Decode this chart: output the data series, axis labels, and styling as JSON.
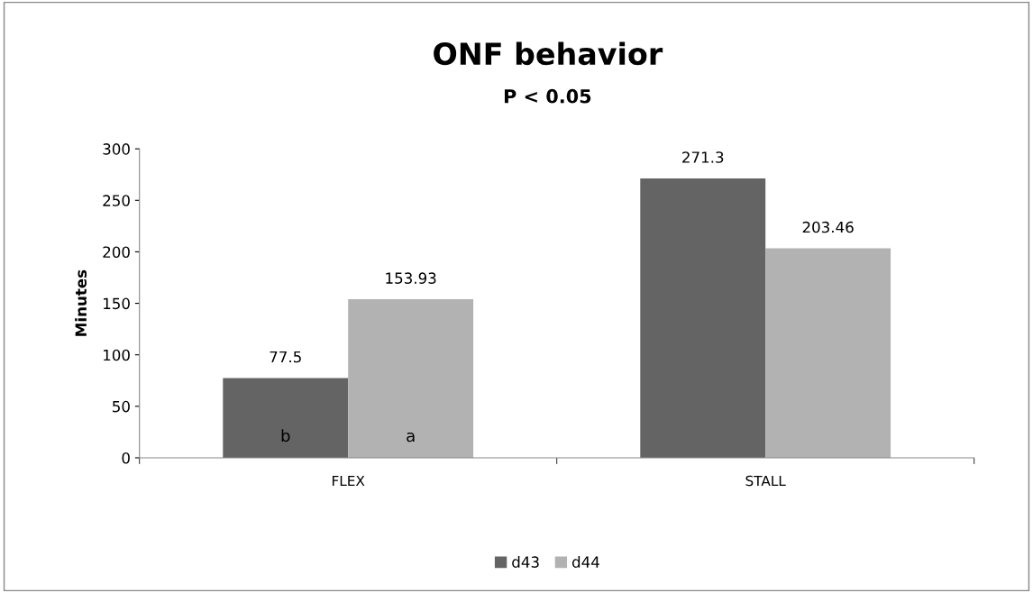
{
  "chart_data": {
    "type": "bar",
    "title": "ONF behavior",
    "subtitle": "P < 0.05",
    "ylabel": "Minutes",
    "categories": [
      "FLEX",
      "STALL"
    ],
    "series": [
      {
        "name": "d43",
        "color": "#646464",
        "values": [
          77.5,
          271.3
        ]
      },
      {
        "name": "d44",
        "color": "#b2b2b2",
        "values": [
          153.93,
          203.46
        ]
      }
    ],
    "ylim": [
      0,
      300
    ],
    "yticks": [
      0,
      50,
      100,
      150,
      200,
      250,
      300
    ],
    "data_labels": true,
    "grid": false,
    "legend": "bottom",
    "annotations": [
      "b",
      "a"
    ]
  }
}
